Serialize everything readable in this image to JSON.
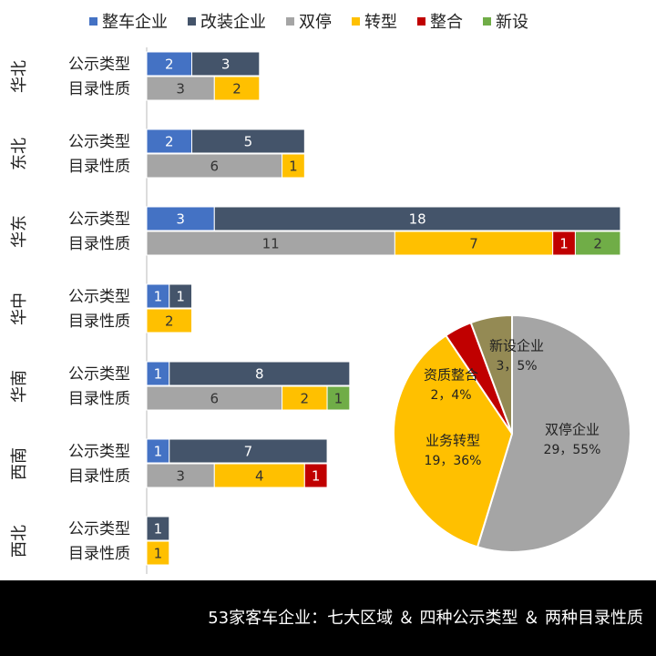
{
  "chart_data": [
    {
      "type": "stacked-bar-h",
      "groups": [
        "华北",
        "东北",
        "华东",
        "华中",
        "华南",
        "西南",
        "西北"
      ],
      "categories": [
        "公示类型",
        "目录性质",
        "公示类型",
        "目录性质",
        "公示类型",
        "目录性质",
        "公示类型",
        "目录性质",
        "公示类型",
        "目录性质",
        "公示类型",
        "目录性质",
        "公示类型",
        "目录性质"
      ],
      "series": [
        {
          "name": "整车企业",
          "color": "#4472c4",
          "values": [
            2,
            null,
            2,
            null,
            3,
            null,
            1,
            null,
            1,
            null,
            1,
            null,
            null,
            null
          ]
        },
        {
          "name": "改装企业",
          "color": "#44546a",
          "values": [
            3,
            null,
            5,
            null,
            18,
            null,
            1,
            null,
            8,
            null,
            7,
            null,
            1,
            null
          ]
        },
        {
          "name": "双停",
          "color": "#a5a5a5",
          "values": [
            null,
            3,
            null,
            6,
            null,
            11,
            null,
            null,
            null,
            6,
            null,
            3,
            null,
            null
          ]
        },
        {
          "name": "转型",
          "color": "#ffc000",
          "values": [
            null,
            2,
            null,
            1,
            null,
            7,
            null,
            2,
            null,
            2,
            null,
            4,
            null,
            1
          ]
        },
        {
          "name": "整合",
          "color": "#c00000",
          "values": [
            null,
            null,
            null,
            null,
            null,
            1,
            null,
            null,
            null,
            null,
            null,
            1,
            null,
            null
          ]
        },
        {
          "name": "新设",
          "color": "#70ad47",
          "values": [
            null,
            null,
            null,
            null,
            null,
            2,
            null,
            null,
            null,
            1,
            null,
            null,
            null,
            null
          ]
        }
      ]
    },
    {
      "type": "pie",
      "categories": [
        "双停企业",
        "业务转型",
        "资质整合",
        "新设企业"
      ],
      "values": [
        29,
        19,
        2,
        3
      ],
      "value_labels": [
        "29，55%",
        "19，36%",
        "2，4%",
        "3，5%"
      ],
      "colors": [
        "#a5a5a5",
        "#ffc000",
        "#c00000",
        "#948a54"
      ]
    }
  ],
  "footer": {
    "caption": "53家客车企业：七大区域 ＆ 四种公示类型 ＆ 两种目录性质"
  }
}
